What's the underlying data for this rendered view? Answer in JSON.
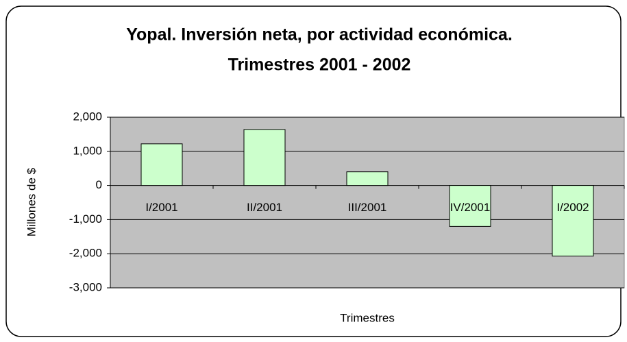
{
  "chart_data": {
    "type": "bar",
    "title": [
      "Yopal.  Inversión neta, por actividad económica.",
      "Trimestres 2001 - 2002"
    ],
    "x_label": "Trimestres",
    "y_label": "Millones de $",
    "categories": [
      "I/2001",
      "II/2001",
      "III/2001",
      "IV/2001",
      "I/2002"
    ],
    "values": [
      1220,
      1640,
      400,
      -1200,
      -2070
    ],
    "color": "#ccffcc",
    "ylim": [
      -3000,
      2000
    ],
    "yticks": [
      {
        "value": -3000,
        "label": "-3,000"
      },
      {
        "value": -2000,
        "label": "-2,000"
      },
      {
        "value": -1000,
        "label": "-1,000"
      },
      0,
      {
        "value": 1000,
        "label": "1,000"
      },
      {
        "value": 2000,
        "label": "2,000"
      }
    ],
    "grid": true
  }
}
